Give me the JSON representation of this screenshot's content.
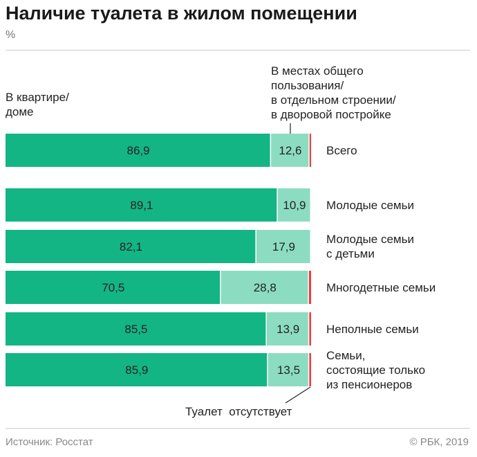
{
  "title": "Наличие туалета в жилом помещении",
  "unit": "%",
  "chart_data": {
    "type": "bar",
    "stacked": true,
    "orientation": "horizontal",
    "title": "Наличие туалета в жилом помещении",
    "ylabel": "%",
    "categories": [
      "Всего",
      "Молодые семьи",
      "Молодые семьи с детьми",
      "Многодетные семьи",
      "Неполные семьи",
      "Семьи, состоящие только из пенсионеров"
    ],
    "series": [
      {
        "name": "В квартире/ доме",
        "color": "#13b584",
        "values": [
          86.9,
          89.1,
          82.1,
          70.5,
          85.5,
          85.9
        ]
      },
      {
        "name": "В местах общего пользования/ в отдельном строении/ в дворовой постройке",
        "color": "#8cdcc2",
        "values": [
          12.6,
          10.9,
          17.9,
          28.8,
          13.9,
          13.5
        ]
      },
      {
        "name": "Туалет отсутствует",
        "color": "#f03c3c",
        "values": [
          0.5,
          0,
          0,
          0.7,
          0.6,
          0.6
        ]
      }
    ],
    "labels": [
      [
        "86,9",
        "12,6"
      ],
      [
        "89,1",
        "10,9"
      ],
      [
        "82,1",
        "17,9"
      ],
      [
        "70,5",
        "28,8"
      ],
      [
        "85,5",
        "13,9"
      ],
      [
        "85,9",
        "13,5"
      ]
    ],
    "xlim": [
      0,
      100
    ]
  },
  "headers": {
    "home": [
      "В квартире/",
      "доме"
    ],
    "common": [
      "В местах общего",
      "пользования/",
      "в отдельном строении/",
      "в дворовой постройке"
    ],
    "absent": "Туалет  отсутствует"
  },
  "category_lines": [
    [
      "Всего"
    ],
    [
      "Молодые семьи"
    ],
    [
      "Молодые семьи",
      "с детьми"
    ],
    [
      "Многодетные семьи"
    ],
    [
      "Неполные семьи"
    ],
    [
      "Семьи,",
      "состоящие только",
      "из пенсионеров"
    ]
  ],
  "footer": {
    "source": "Источник: Росстат",
    "copyright": "© РБК, 2019"
  }
}
